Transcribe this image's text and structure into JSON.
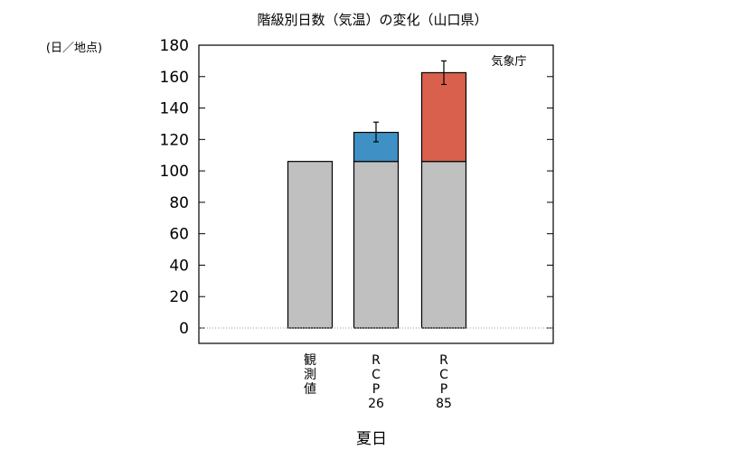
{
  "chart_data": {
    "type": "bar",
    "stacked": true,
    "title": "階級別日数（気温）の変化（山口県）",
    "unit_label": "(日／地点)",
    "source": "気象庁",
    "xlabel": "夏日",
    "ylabel": "",
    "ylim": [
      0,
      180
    ],
    "yticks": [
      0,
      20,
      40,
      60,
      80,
      100,
      120,
      140,
      160,
      180
    ],
    "categories": [
      "観測値",
      "RCP26",
      "RCP85"
    ],
    "category_label_lines": [
      [
        "観",
        "測",
        "値"
      ],
      [
        "R",
        "C",
        "P",
        "26"
      ],
      [
        "R",
        "C",
        "P",
        "85"
      ]
    ],
    "series": [
      {
        "name": "",
        "color": "#c0c0c0",
        "values": [
          106,
          106,
          106
        ]
      },
      {
        "name": "",
        "color": "#3f91c5",
        "values": [
          0,
          18.5,
          56.5
        ]
      }
    ],
    "totals": [
      106,
      124.5,
      162.5
    ],
    "error_bars": [
      null,
      [
        118.5,
        131
      ],
      [
        155,
        170
      ]
    ],
    "grid": false,
    "zero_line": "dotted"
  },
  "colors": {
    "rcp85_increase": "#d9604c"
  }
}
